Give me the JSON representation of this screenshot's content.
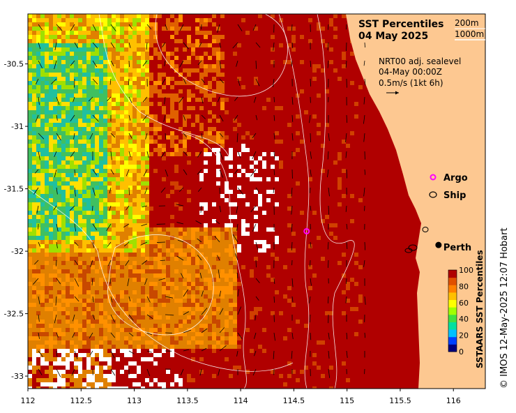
{
  "title": {
    "line1": "SST Percentiles",
    "line2": "04 May 2025",
    "depth1": "200m",
    "depth2": "1000m"
  },
  "info": {
    "line1": "NRT00 adj. sealevel",
    "line2": "04-May 00:00Z",
    "line3": "0.5m/s (1kt 6h)"
  },
  "legend": {
    "argo": "Argo",
    "ship": "Ship",
    "argo_color": "#ff00ff"
  },
  "city": {
    "label": "Perth",
    "lon": 115.86,
    "lat": -31.95
  },
  "argo_float": {
    "lon": 114.62,
    "lat": -31.84
  },
  "colorbar": {
    "title": "SSTAARS SST Percentiles",
    "ticks": [
      "0",
      "20",
      "40",
      "60",
      "80",
      "100"
    ],
    "colors": [
      "#00007f",
      "#0040ff",
      "#00c0ff",
      "#00e0a0",
      "#40e040",
      "#a0ff00",
      "#ffff00",
      "#ffc000",
      "#ff8000",
      "#e05000",
      "#b00000"
    ]
  },
  "credit": "© IMOS 12-May-2025 12:07 Hobart",
  "axes": {
    "x_ticks": [
      "112",
      "112.5",
      "113",
      "113.5",
      "114",
      "114.5",
      "115",
      "115.5",
      "116"
    ],
    "x_values": [
      112,
      112.5,
      113,
      113.5,
      114,
      114.5,
      115,
      115.5,
      116
    ],
    "y_ticks": [
      "-30.5",
      "-31",
      "-31.5",
      "-32",
      "-32.5",
      "-33"
    ],
    "y_values": [
      -30.5,
      -31,
      -31.5,
      -32,
      -32.5,
      -33
    ],
    "lon_range": [
      112,
      116.3
    ],
    "lat_range": [
      -30.1,
      -33.1
    ]
  },
  "colors": {
    "land": "#fdc891",
    "sea_hot": "#b00000",
    "sea_warm": "#e05000",
    "sea_mid": "#ff8000"
  }
}
